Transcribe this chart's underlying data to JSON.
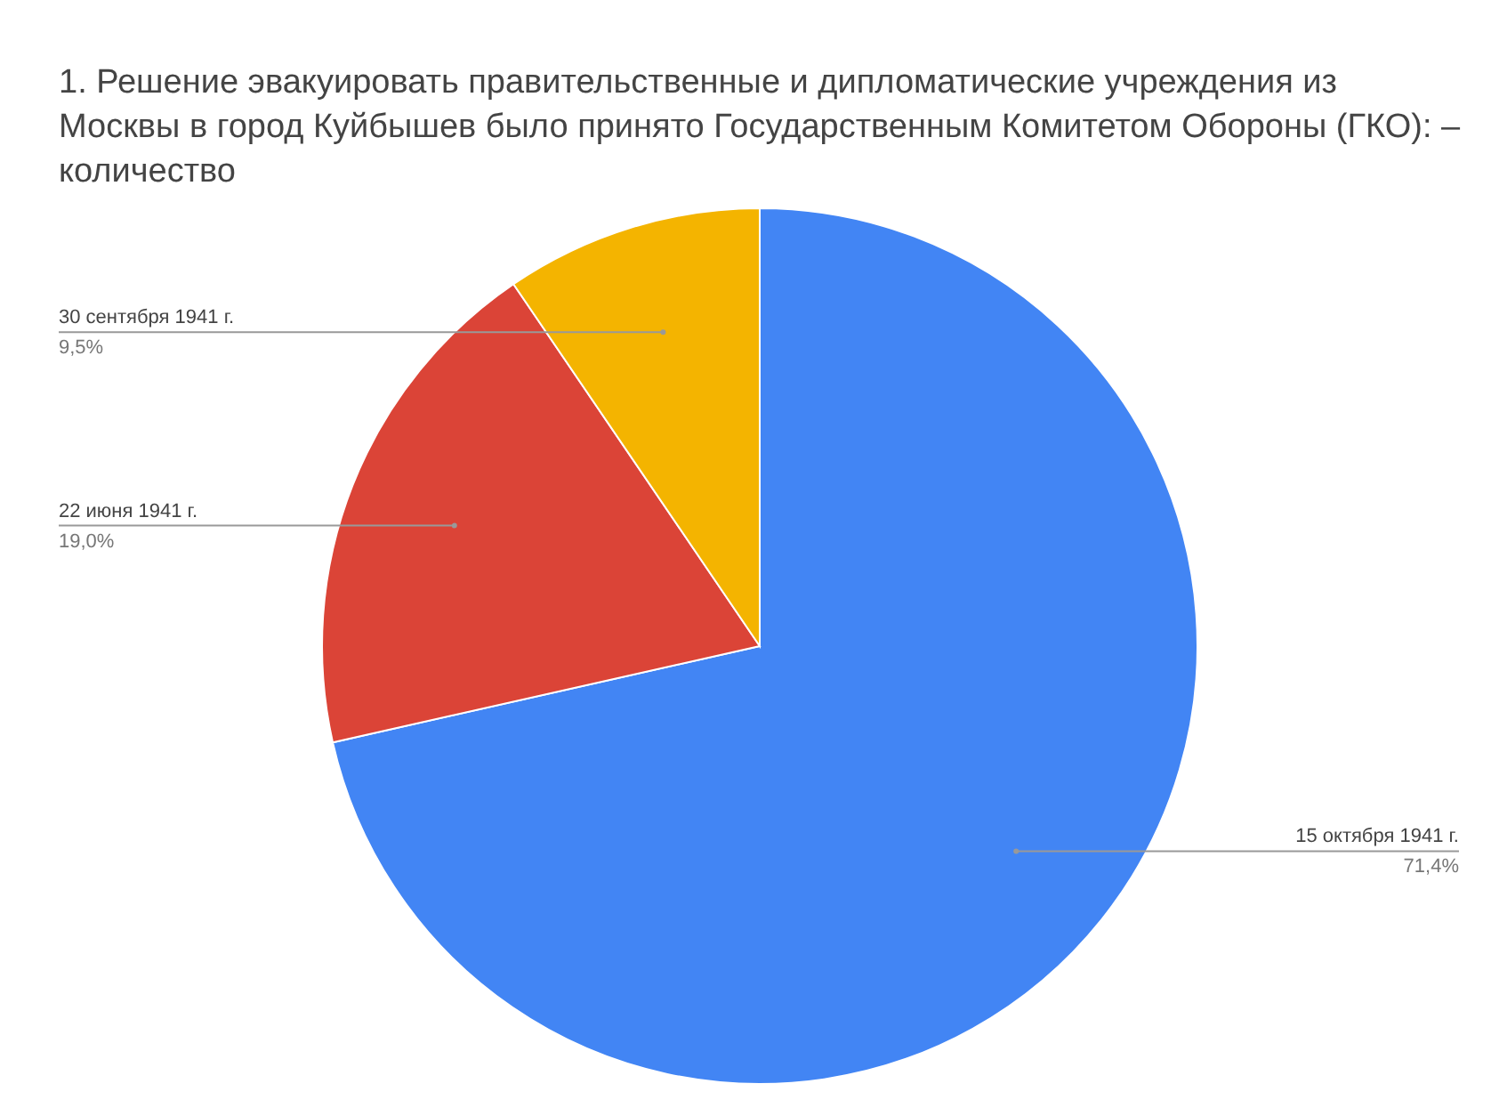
{
  "chart_data": {
    "type": "pie",
    "title": "1. Решение эвакуировать правительственные и дипломатические учреждения из Москвы в город Куйбышев было принято Государственным Комитетом Обороны (ГКО): – количество",
    "categories": [
      "15 октября 1941 г.",
      "22 июня 1941 г.",
      "30 сентября 1941 г."
    ],
    "values": [
      71.4,
      19.0,
      9.5
    ],
    "value_labels": [
      "71,4%",
      "19,0%",
      "9,5%"
    ],
    "colors": [
      "#4285f4",
      "#db4437",
      "#f4b400"
    ],
    "legend": false
  }
}
